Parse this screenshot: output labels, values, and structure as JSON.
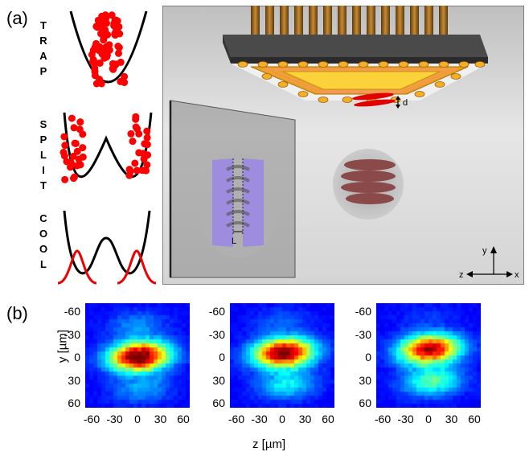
{
  "panel_a": {
    "label": "(a)",
    "words": [
      "TRAP",
      "SPLIT",
      "COOL"
    ],
    "labels": {
      "d": "d",
      "L": "L",
      "axis_y": "y",
      "axis_z": "z",
      "axis_x": "x"
    }
  },
  "panel_b": {
    "label": "(b)",
    "ylabel": "y [µm]",
    "xlabel": "z [µm]",
    "yticks": [
      "-60",
      "-30",
      "0",
      "30",
      "60"
    ],
    "xticks": [
      "-60",
      "-30",
      "0",
      "30",
      "60"
    ]
  },
  "colors": {
    "atoms": "#ff0000",
    "heat_low": "#0000a8",
    "heat_high": "#ff2000",
    "chip_gold": "#f2b21e"
  }
}
